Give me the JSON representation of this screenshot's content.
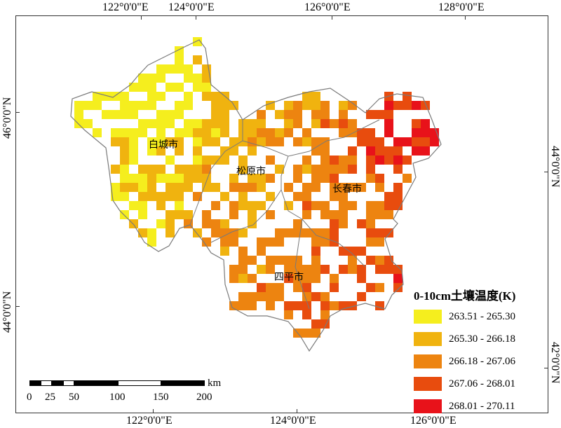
{
  "axes": {
    "top_lon": [
      "122°0'0\"E",
      "124°0'0\"E",
      "126°0'0\"E",
      "128°0'0\"E"
    ],
    "bottom_lon": [
      "122°0'0\"E",
      "124°0'0\"E",
      "126°0'0\"E"
    ],
    "left_lat": [
      "46°0'0\"N",
      "44°0'0\"N"
    ],
    "right_lat": [
      "44°0'0\"N",
      "42°0'0\"N"
    ]
  },
  "cities": {
    "baicheng": "白城市",
    "songyuan": "松原市",
    "changchun": "长春市",
    "siping": "四平市"
  },
  "legend": {
    "title": "0-10cm土壤温度(K)",
    "classes": [
      {
        "label": "263.51 - 265.30",
        "color": "#f5ee1e"
      },
      {
        "label": "265.30 - 266.18",
        "color": "#f0b30f"
      },
      {
        "label": "266.18 - 267.06",
        "color": "#ed8410"
      },
      {
        "label": "267.06 - 268.01",
        "color": "#e84c0e"
      },
      {
        "label": "268.01 - 270.11",
        "color": "#e8121a"
      }
    ]
  },
  "scalebar": {
    "unit": "km",
    "ticks": [
      "0",
      "25",
      "50",
      "100",
      "150",
      "200"
    ]
  },
  "boundary_color": "#7a7a7a"
}
